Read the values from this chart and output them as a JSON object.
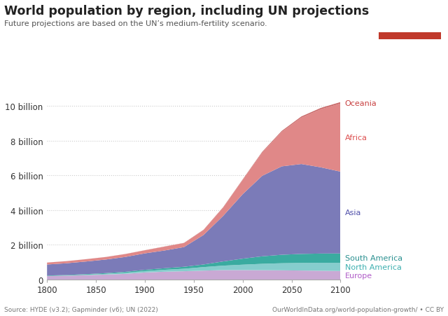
{
  "title": "World population by region, including UN projections",
  "subtitle": "Future projections are based on the UN’s medium-fertility scenario.",
  "source_left": "Source: HYDE (v3.2); Gapminder (v6); UN (2022)",
  "source_right": "OurWorldInData.org/world-population-growth/ • CC BY",
  "bg_color": "#ffffff",
  "grid_color": "#cccccc",
  "years": [
    1800,
    1820,
    1840,
    1860,
    1880,
    1900,
    1920,
    1940,
    1960,
    1980,
    2000,
    2020,
    2040,
    2060,
    2080,
    2100
  ],
  "regions": [
    "Europe",
    "North America",
    "South America",
    "Asia",
    "Africa",
    "Oceania"
  ],
  "colors": [
    "#c9a9d4",
    "#86cdcd",
    "#3aaba0",
    "#7b7bb8",
    "#e08888",
    "#c86868"
  ],
  "label_colors": [
    "#b05cc8",
    "#3db0b0",
    "#2a9090",
    "#5050aa",
    "#dd5050",
    "#c84040"
  ],
  "data": {
    "Europe": [
      0.203,
      0.224,
      0.255,
      0.289,
      0.328,
      0.408,
      0.453,
      0.481,
      0.516,
      0.547,
      0.547,
      0.54,
      0.533,
      0.521,
      0.508,
      0.494
    ],
    "North America": [
      0.007,
      0.011,
      0.026,
      0.044,
      0.066,
      0.082,
      0.111,
      0.145,
      0.204,
      0.256,
      0.312,
      0.369,
      0.41,
      0.44,
      0.459,
      0.472
    ],
    "South America": [
      0.024,
      0.028,
      0.033,
      0.039,
      0.053,
      0.074,
      0.091,
      0.112,
      0.15,
      0.242,
      0.347,
      0.432,
      0.488,
      0.519,
      0.534,
      0.539
    ],
    "Asia": [
      0.635,
      0.679,
      0.728,
      0.783,
      0.857,
      0.947,
      1.021,
      1.135,
      1.701,
      2.623,
      3.714,
      4.641,
      5.095,
      5.182,
      4.968,
      4.717
    ],
    "Africa": [
      0.111,
      0.12,
      0.133,
      0.144,
      0.166,
      0.177,
      0.22,
      0.231,
      0.285,
      0.477,
      0.819,
      1.341,
      1.99,
      2.674,
      3.353,
      3.928
    ],
    "Oceania": [
      0.002,
      0.002,
      0.003,
      0.004,
      0.005,
      0.006,
      0.009,
      0.011,
      0.016,
      0.023,
      0.031,
      0.043,
      0.054,
      0.065,
      0.073,
      0.08
    ]
  },
  "ylim": [
    0,
    11500000000.0
  ],
  "yticks": [
    0,
    2000000000.0,
    4000000000.0,
    6000000000.0,
    8000000000.0,
    10000000000.0
  ],
  "ytick_labels": [
    "0",
    "2 billion",
    "4 billion",
    "6 billion",
    "8 billion",
    "10 billion"
  ],
  "xlim": [
    1800,
    2100
  ],
  "xticks": [
    1800,
    1850,
    1900,
    1950,
    2000,
    2050,
    2100
  ],
  "logo_bg": "#1a3560",
  "logo_red": "#c0392b"
}
